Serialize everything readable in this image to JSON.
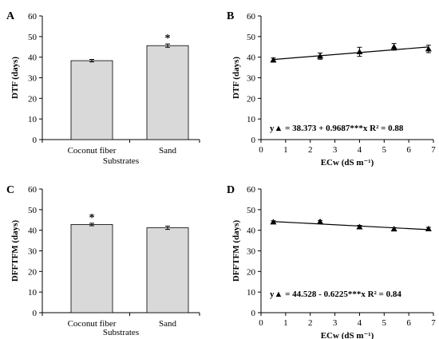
{
  "chart_data": [
    {
      "panel": "A",
      "type": "bar",
      "categories": [
        "Coconut fiber",
        "Sand"
      ],
      "values": [
        38.3,
        45.6
      ],
      "errors": [
        0.6,
        0.8
      ],
      "significance": [
        "",
        "*"
      ],
      "xlabel": "Substrates",
      "ylabel": "DTF (days)",
      "ylim": [
        0,
        60
      ],
      "yticks": [
        "0",
        "10",
        "20",
        "30",
        "40",
        "50",
        "60"
      ],
      "bar_color": "#d9d9d9"
    },
    {
      "panel": "B",
      "type": "scatter",
      "x": [
        0.5,
        2.4,
        4.0,
        5.4,
        6.8
      ],
      "y": [
        38.6,
        40.5,
        42.6,
        45.0,
        44.0
      ],
      "errors": [
        1.0,
        1.5,
        2.2,
        1.6,
        1.8
      ],
      "fit": {
        "intercept": 38.373,
        "slope": 0.9687
      },
      "equation": "y▲ = 38.373 + 0.9687***x R² = 0.88",
      "xlabel": "ECw (dS m⁻¹)",
      "ylabel": "DTF (days)",
      "xlim": [
        0,
        7
      ],
      "ylim": [
        0,
        60
      ],
      "xticks": [
        "0",
        "1",
        "2",
        "3",
        "4",
        "5",
        "6",
        "7"
      ],
      "yticks": [
        "0",
        "10",
        "20",
        "30",
        "40",
        "50",
        "60"
      ]
    },
    {
      "panel": "C",
      "type": "bar",
      "categories": [
        "Coconut fiber",
        "Sand"
      ],
      "values": [
        42.8,
        41.2
      ],
      "errors": [
        0.6,
        0.8
      ],
      "significance": [
        "*",
        ""
      ],
      "xlabel": "Substrates",
      "ylabel": "DFFTFM (days)",
      "ylim": [
        0,
        60
      ],
      "yticks": [
        "0",
        "10",
        "20",
        "30",
        "40",
        "50",
        "60"
      ],
      "bar_color": "#d9d9d9"
    },
    {
      "panel": "D",
      "type": "scatter",
      "x": [
        0.5,
        2.4,
        4.0,
        5.4,
        6.8
      ],
      "y": [
        44.0,
        44.2,
        41.6,
        40.6,
        40.7
      ],
      "errors": [
        0.6,
        0.6,
        0.8,
        0.7,
        0.7
      ],
      "fit": {
        "intercept": 44.528,
        "slope": -0.6225
      },
      "equation": "y▲ = 44.528 - 0.6225***x R² = 0.84",
      "xlabel": "ECw (dS m⁻¹)",
      "ylabel": "DFFTFM (days)",
      "xlim": [
        0,
        7
      ],
      "ylim": [
        0,
        60
      ],
      "xticks": [
        "0",
        "1",
        "2",
        "3",
        "4",
        "5",
        "6",
        "7"
      ],
      "yticks": [
        "0",
        "10",
        "20",
        "30",
        "40",
        "50",
        "60"
      ]
    }
  ]
}
